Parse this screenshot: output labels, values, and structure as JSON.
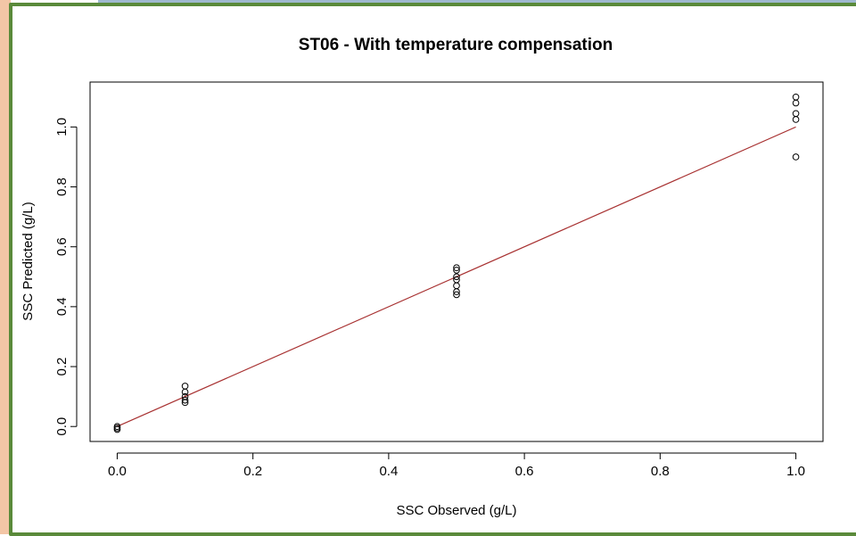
{
  "chart_data": {
    "type": "scatter",
    "title": "ST06 - With temperature compensation",
    "xlabel": "SSC Observed (g/L)",
    "ylabel": "SSC Predicted (g/L)",
    "xlim": [
      -0.04,
      1.04
    ],
    "ylim": [
      -0.05,
      1.15
    ],
    "x_ticks": [
      "0.0",
      "0.2",
      "0.4",
      "0.6",
      "0.8",
      "1.0"
    ],
    "y_ticks": [
      "0.0",
      "0.2",
      "0.4",
      "0.6",
      "0.8",
      "1.0"
    ],
    "grid": false,
    "legend": "none",
    "points": [
      {
        "x": 0.0,
        "y": 0.0
      },
      {
        "x": 0.0,
        "y": -0.005
      },
      {
        "x": 0.0,
        "y": -0.01
      },
      {
        "x": 0.1,
        "y": 0.135
      },
      {
        "x": 0.1,
        "y": 0.115
      },
      {
        "x": 0.1,
        "y": 0.1
      },
      {
        "x": 0.1,
        "y": 0.088
      },
      {
        "x": 0.1,
        "y": 0.08
      },
      {
        "x": 0.5,
        "y": 0.53
      },
      {
        "x": 0.5,
        "y": 0.522
      },
      {
        "x": 0.5,
        "y": 0.5
      },
      {
        "x": 0.5,
        "y": 0.49
      },
      {
        "x": 0.5,
        "y": 0.47
      },
      {
        "x": 0.5,
        "y": 0.45
      },
      {
        "x": 0.5,
        "y": 0.44
      },
      {
        "x": 1.0,
        "y": 1.1
      },
      {
        "x": 1.0,
        "y": 1.08
      },
      {
        "x": 1.0,
        "y": 1.045
      },
      {
        "x": 1.0,
        "y": 1.025
      },
      {
        "x": 1.0,
        "y": 0.9
      }
    ],
    "reference_line": {
      "x": [
        0,
        1
      ],
      "y": [
        0,
        1
      ],
      "color": "#a83232"
    },
    "point_color": "#000000"
  }
}
